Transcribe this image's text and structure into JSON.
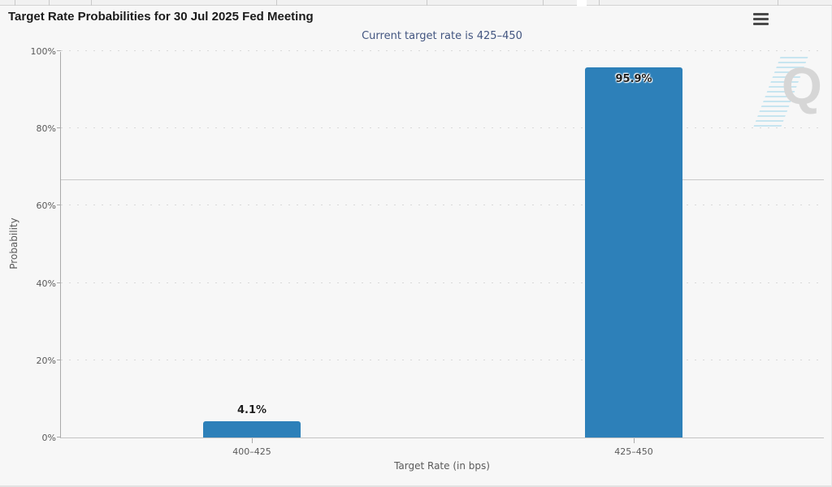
{
  "header": {
    "menu_tooltip": "Chart context menu"
  },
  "watermark": {
    "letter": "Q"
  },
  "chart_data": {
    "type": "bar",
    "title": "Target Rate Probabilities for 30 Jul 2025 Fed Meeting",
    "subtitle": "Current target rate is 425–450",
    "categories": [
      "400–425",
      "425–450"
    ],
    "values": [
      4.1,
      95.9
    ],
    "value_labels": [
      "4.1%",
      "95.9%"
    ],
    "xlabel": "Target Rate (in bps)",
    "ylabel": "Probability",
    "ylim": [
      0,
      100
    ],
    "yticks": [
      0,
      20,
      40,
      60,
      80,
      100
    ],
    "ytick_labels": [
      "0%",
      "20%",
      "40%",
      "60%",
      "80%",
      "100%"
    ],
    "reference_line": 66.6,
    "bar_color": "#2d80b9",
    "grid": "dotted-horizontal",
    "legend_position": "none"
  }
}
